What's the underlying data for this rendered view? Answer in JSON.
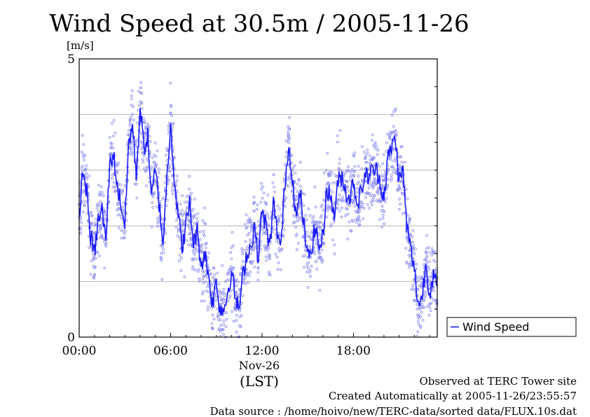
{
  "chart_data": {
    "type": "line",
    "title": "Wind Speed at 30.5m / 2005-11-26",
    "ylabel": "[m/s]",
    "ylim": [
      0,
      5
    ],
    "yticks": [
      {
        "value": 0,
        "label": "0"
      },
      {
        "value": 5,
        "label": "5"
      }
    ],
    "ygrid": [
      1,
      2,
      3,
      4
    ],
    "xlim_hours": [
      0,
      23.5
    ],
    "xticks": [
      {
        "hour": 0,
        "label": "00:00"
      },
      {
        "hour": 6,
        "label": "06:00"
      },
      {
        "hour": 12,
        "label": "12:00"
      },
      {
        "hour": 18,
        "label": "18:00"
      }
    ],
    "xsub": "Nov-26",
    "xlabel": "(LST)",
    "legend": {
      "position": "right",
      "label": "Wind Speed"
    },
    "colors": {
      "line": "#1a1aff",
      "points": "#8c8cf0",
      "grid": "#b4b4b4"
    },
    "series": [
      {
        "name": "Wind Speed",
        "x_hours": [
          0.0,
          0.25,
          0.5,
          0.75,
          1.0,
          1.25,
          1.5,
          1.75,
          2.0,
          2.25,
          2.5,
          2.75,
          3.0,
          3.25,
          3.5,
          3.75,
          4.0,
          4.25,
          4.5,
          4.75,
          5.0,
          5.25,
          5.5,
          5.75,
          6.0,
          6.25,
          6.5,
          6.75,
          7.0,
          7.25,
          7.5,
          7.75,
          8.0,
          8.25,
          8.5,
          8.75,
          9.0,
          9.25,
          9.5,
          9.75,
          10.0,
          10.25,
          10.5,
          10.75,
          11.0,
          11.25,
          11.5,
          11.75,
          12.0,
          12.25,
          12.5,
          12.75,
          13.0,
          13.25,
          13.5,
          13.75,
          14.0,
          14.25,
          14.5,
          14.75,
          15.0,
          15.25,
          15.5,
          15.75,
          16.0,
          16.25,
          16.5,
          16.75,
          17.0,
          17.25,
          17.5,
          17.75,
          18.0,
          18.25,
          18.5,
          18.75,
          19.0,
          19.25,
          19.5,
          19.75,
          20.0,
          20.25,
          20.5,
          20.75,
          21.0,
          21.25,
          21.5,
          21.75,
          22.0,
          22.25,
          22.5,
          22.75,
          23.0,
          23.25,
          23.5
        ],
        "values": [
          2.2,
          3.0,
          2.6,
          1.8,
          1.5,
          2.1,
          2.3,
          1.7,
          3.1,
          3.3,
          2.7,
          2.4,
          2.0,
          3.5,
          3.8,
          2.9,
          4.1,
          3.4,
          3.6,
          2.5,
          3.0,
          2.4,
          1.7,
          2.8,
          3.9,
          2.8,
          2.2,
          1.6,
          2.0,
          2.4,
          1.7,
          1.9,
          1.3,
          1.5,
          1.1,
          0.6,
          1.0,
          0.5,
          0.5,
          0.8,
          1.2,
          0.7,
          0.5,
          1.1,
          1.5,
          1.6,
          2.0,
          1.4,
          2.3,
          2.0,
          1.6,
          2.4,
          1.9,
          1.6,
          2.8,
          3.4,
          2.9,
          2.1,
          2.6,
          2.0,
          1.4,
          1.6,
          2.0,
          1.6,
          1.8,
          2.7,
          2.5,
          2.2,
          2.8,
          2.9,
          2.6,
          2.5,
          2.8,
          2.4,
          2.6,
          2.9,
          2.9,
          3.0,
          3.0,
          2.8,
          2.5,
          3.2,
          3.4,
          3.6,
          2.8,
          3.0,
          2.0,
          1.6,
          1.2,
          0.6,
          0.7,
          1.3,
          0.8,
          1.1,
          0.9
        ]
      }
    ]
  },
  "footer": {
    "line1": "Observed at TERC Tower site",
    "line2": "Created Automatically at 2005-11-26/23:55:57",
    "line3": "Data source : /home/hoivo/new/TERC-data/sorted  data/FLUX.10s.dat"
  }
}
